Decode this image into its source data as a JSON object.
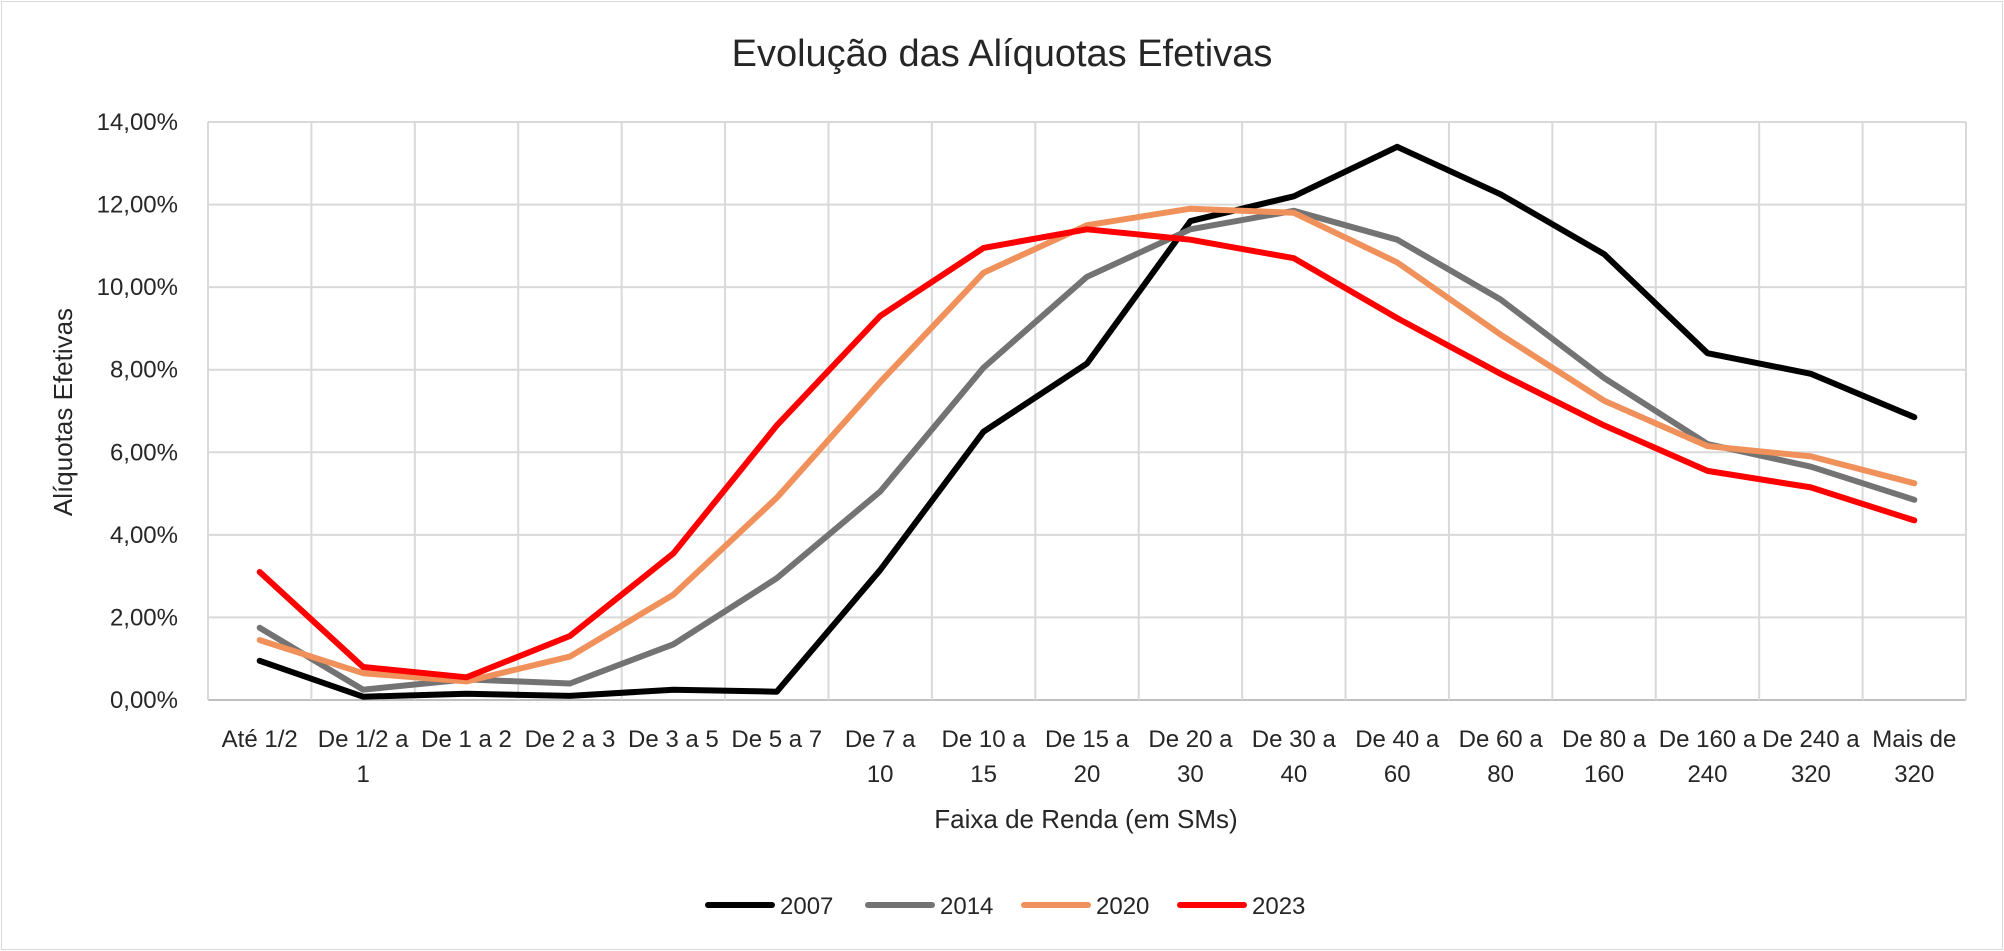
{
  "chart_data": {
    "type": "line",
    "title": "Evolução das Alíquotas Efetivas",
    "xlabel": "Faixa de Renda (em SMs)",
    "ylabel": "Alíquotas Efetivas",
    "ylim": [
      0,
      14
    ],
    "yticks": [
      0,
      2,
      4,
      6,
      8,
      10,
      12,
      14
    ],
    "ytick_labels": [
      "0,00%",
      "2,00%",
      "4,00%",
      "6,00%",
      "8,00%",
      "10,00%",
      "12,00%",
      "14,00%"
    ],
    "grid": true,
    "legend_position": "bottom",
    "categories": [
      [
        "Até 1/2"
      ],
      [
        "De 1/2 a",
        "1"
      ],
      [
        "De 1 a 2"
      ],
      [
        "De 2 a 3"
      ],
      [
        "De 3 a 5"
      ],
      [
        "De 5 a 7"
      ],
      [
        "De 7 a",
        "10"
      ],
      [
        "De 10 a",
        "15"
      ],
      [
        "De 15 a",
        "20"
      ],
      [
        "De 20 a",
        "30"
      ],
      [
        "De 30 a",
        "40"
      ],
      [
        "De 40 a",
        "60"
      ],
      [
        "De 60 a",
        "80"
      ],
      [
        "De 80 a",
        "160"
      ],
      [
        "De 160 a",
        "240"
      ],
      [
        "De 240 a",
        "320"
      ],
      [
        "Mais de",
        "320"
      ]
    ],
    "series": [
      {
        "name": "2007",
        "color": "#000000",
        "values": [
          0.95,
          0.08,
          0.15,
          0.1,
          0.25,
          0.2,
          3.15,
          6.5,
          8.15,
          11.6,
          12.2,
          13.4,
          12.25,
          10.8,
          8.4,
          7.9,
          6.85
        ]
      },
      {
        "name": "2014",
        "color": "#737373",
        "values": [
          1.75,
          0.25,
          0.5,
          0.4,
          1.35,
          2.95,
          5.05,
          8.05,
          10.25,
          11.4,
          11.85,
          11.15,
          9.7,
          7.8,
          6.2,
          5.65,
          4.85
        ]
      },
      {
        "name": "2020",
        "color": "#f0905a",
        "values": [
          1.45,
          0.65,
          0.45,
          1.05,
          2.55,
          4.9,
          7.7,
          10.35,
          11.5,
          11.9,
          11.8,
          10.6,
          8.85,
          7.25,
          6.15,
          5.9,
          5.25
        ]
      },
      {
        "name": "2023",
        "color": "#ff0000",
        "values": [
          3.1,
          0.8,
          0.55,
          1.55,
          3.55,
          6.65,
          9.3,
          10.95,
          11.4,
          11.15,
          10.7,
          9.25,
          7.9,
          6.65,
          5.55,
          5.15,
          4.35
        ]
      }
    ]
  }
}
